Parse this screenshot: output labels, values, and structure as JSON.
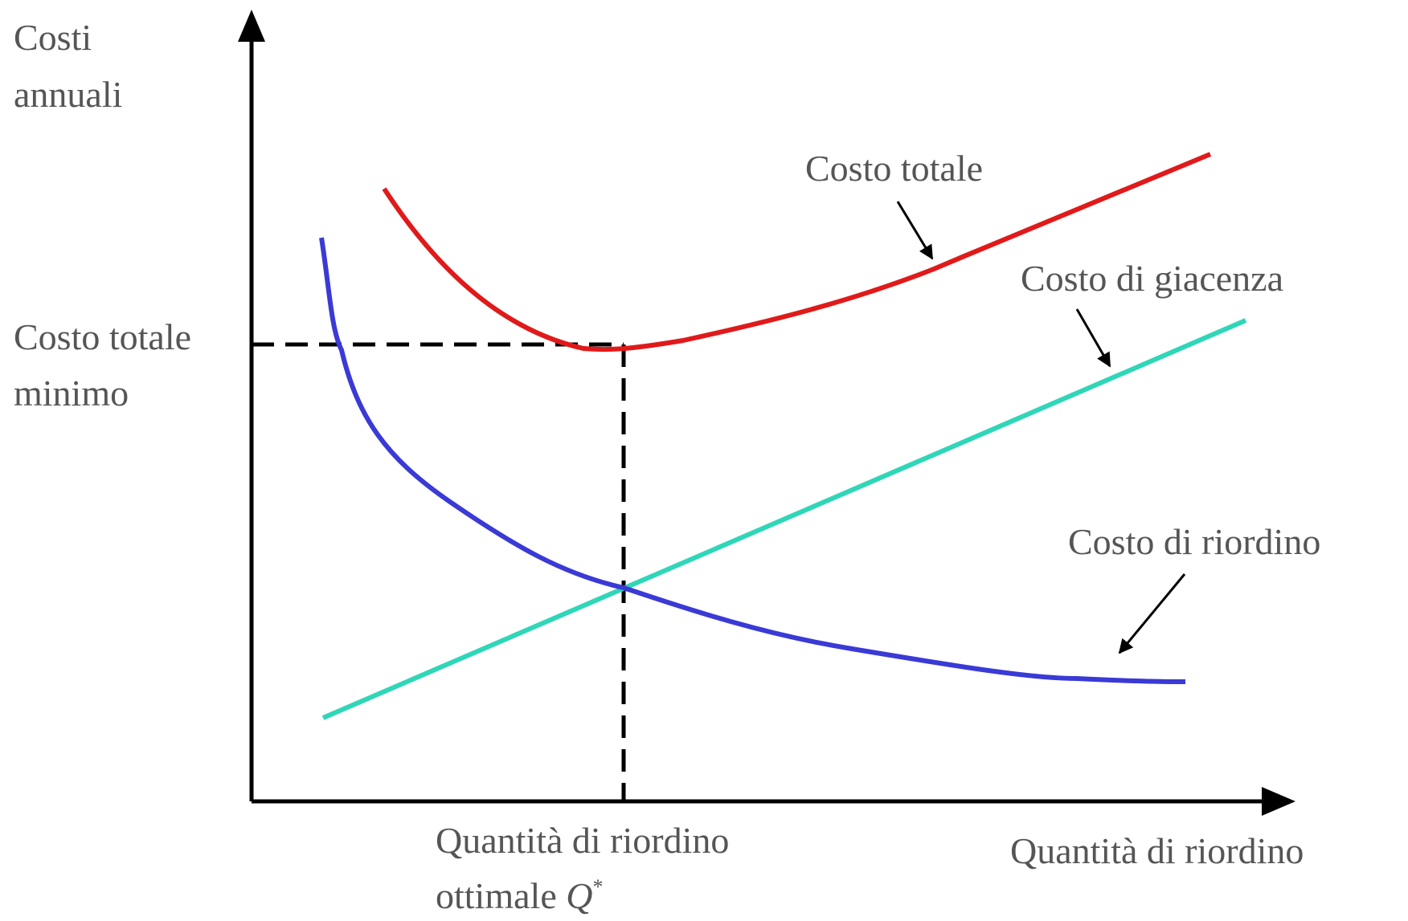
{
  "y_axis_label": [
    "Costi",
    "annuali"
  ],
  "x_axis_label": "Quantità di riordino",
  "minimum_label": [
    "Costo totale",
    "minimo"
  ],
  "optimum_label": {
    "line1": "Quantità di riordino",
    "line2": "ottimale",
    "symbol": "Q",
    "superscript": "*"
  },
  "curves": {
    "total": "Costo totale",
    "holding": "Costo di giacenza",
    "ordering": "Costo di riordino"
  }
}
